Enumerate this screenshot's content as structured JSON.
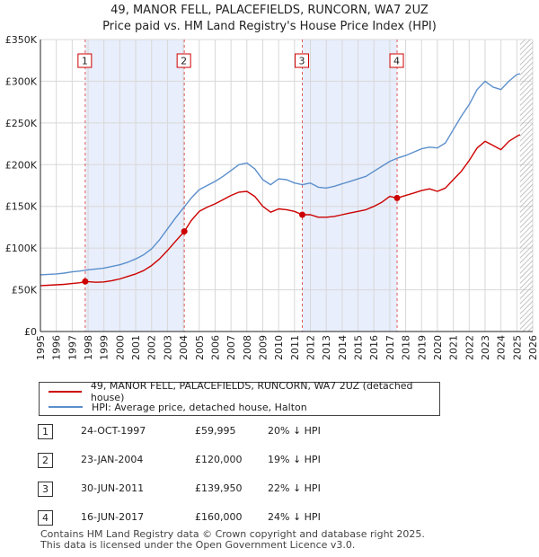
{
  "title_lines": [
    "49, MANOR FELL, PALACEFIELDS, RUNCORN, WA7 2UZ",
    "Price paid vs. HM Land Registry's House Price Index (HPI)"
  ],
  "chart_data": {
    "type": "line",
    "title": "49, MANOR FELL, PALACEFIELDS, RUNCORN, WA7 2UZ — Price paid vs. HM Land Registry's House Price Index (HPI)",
    "xlabel": "",
    "ylabel": "",
    "xlim": [
      1995,
      2026
    ],
    "ylim": [
      0,
      350000
    ],
    "x_ticks": [
      "1995",
      "1996",
      "1997",
      "1998",
      "1999",
      "2000",
      "2001",
      "2002",
      "2003",
      "2004",
      "2005",
      "2006",
      "2007",
      "2008",
      "2009",
      "2010",
      "2011",
      "2012",
      "2013",
      "2014",
      "2015",
      "2016",
      "2017",
      "2018",
      "2019",
      "2020",
      "2021",
      "2022",
      "2023",
      "2024",
      "2025",
      "2026"
    ],
    "y_ticks": [
      0,
      50000,
      100000,
      150000,
      200000,
      250000,
      300000,
      350000
    ],
    "y_tick_labels": [
      "£0",
      "£50K",
      "£100K",
      "£150K",
      "£200K",
      "£250K",
      "£300K",
      "£350K"
    ],
    "grid": true,
    "series": [
      {
        "name": "49, MANOR FELL, PALACEFIELDS, RUNCORN, WA7 2UZ (detached house)",
        "color": "#cc0000",
        "points": [
          [
            1995.0,
            55000
          ],
          [
            1995.5,
            55500
          ],
          [
            1996.0,
            56000
          ],
          [
            1996.5,
            56500
          ],
          [
            1997.0,
            57500
          ],
          [
            1997.5,
            58500
          ],
          [
            1997.82,
            59995
          ],
          [
            1998.5,
            59000
          ],
          [
            1999.0,
            59500
          ],
          [
            1999.5,
            61000
          ],
          [
            2000.0,
            63000
          ],
          [
            2000.5,
            66000
          ],
          [
            2001.0,
            69000
          ],
          [
            2001.5,
            73000
          ],
          [
            2002.0,
            79000
          ],
          [
            2002.5,
            87000
          ],
          [
            2003.0,
            97000
          ],
          [
            2003.5,
            108000
          ],
          [
            2004.06,
            120000
          ],
          [
            2004.5,
            133000
          ],
          [
            2005.0,
            144000
          ],
          [
            2005.5,
            149000
          ],
          [
            2006.0,
            153000
          ],
          [
            2006.5,
            158000
          ],
          [
            2007.0,
            163000
          ],
          [
            2007.5,
            167000
          ],
          [
            2008.0,
            168000
          ],
          [
            2008.5,
            162000
          ],
          [
            2009.0,
            150000
          ],
          [
            2009.5,
            143000
          ],
          [
            2010.0,
            147000
          ],
          [
            2010.5,
            146000
          ],
          [
            2011.0,
            144000
          ],
          [
            2011.49,
            139950
          ],
          [
            2012.0,
            140000
          ],
          [
            2012.5,
            137000
          ],
          [
            2013.0,
            137000
          ],
          [
            2013.5,
            138000
          ],
          [
            2014.0,
            140000
          ],
          [
            2014.5,
            142000
          ],
          [
            2015.0,
            144000
          ],
          [
            2015.5,
            146000
          ],
          [
            2016.0,
            150000
          ],
          [
            2016.5,
            155000
          ],
          [
            2017.0,
            162000
          ],
          [
            2017.46,
            160000
          ],
          [
            2018.0,
            163000
          ],
          [
            2018.5,
            166000
          ],
          [
            2019.0,
            169000
          ],
          [
            2019.5,
            171000
          ],
          [
            2020.0,
            168000
          ],
          [
            2020.5,
            172000
          ],
          [
            2021.0,
            182000
          ],
          [
            2021.5,
            192000
          ],
          [
            2022.0,
            205000
          ],
          [
            2022.5,
            220000
          ],
          [
            2023.0,
            228000
          ],
          [
            2023.5,
            223000
          ],
          [
            2024.0,
            218000
          ],
          [
            2024.5,
            228000
          ],
          [
            2025.0,
            234000
          ],
          [
            2025.2,
            236000
          ]
        ]
      },
      {
        "name": "HPI: Average price, detached house, Halton",
        "color": "#5b8fcc",
        "points": [
          [
            1995.0,
            68000
          ],
          [
            1995.5,
            68500
          ],
          [
            1996.0,
            69000
          ],
          [
            1996.5,
            70000
          ],
          [
            1997.0,
            71500
          ],
          [
            1997.5,
            72500
          ],
          [
            1998.0,
            74000
          ],
          [
            1998.5,
            75000
          ],
          [
            1999.0,
            76000
          ],
          [
            1999.5,
            78000
          ],
          [
            2000.0,
            80000
          ],
          [
            2000.5,
            83000
          ],
          [
            2001.0,
            87000
          ],
          [
            2001.5,
            92000
          ],
          [
            2002.0,
            99000
          ],
          [
            2002.5,
            110000
          ],
          [
            2003.0,
            123000
          ],
          [
            2003.5,
            136000
          ],
          [
            2004.0,
            148000
          ],
          [
            2004.5,
            160000
          ],
          [
            2005.0,
            170000
          ],
          [
            2005.5,
            175000
          ],
          [
            2006.0,
            180000
          ],
          [
            2006.5,
            186000
          ],
          [
            2007.0,
            193000
          ],
          [
            2007.5,
            200000
          ],
          [
            2008.0,
            202000
          ],
          [
            2008.5,
            195000
          ],
          [
            2009.0,
            182000
          ],
          [
            2009.5,
            176000
          ],
          [
            2010.0,
            183000
          ],
          [
            2010.5,
            182000
          ],
          [
            2011.0,
            178000
          ],
          [
            2011.5,
            176000
          ],
          [
            2012.0,
            178000
          ],
          [
            2012.5,
            173000
          ],
          [
            2013.0,
            172000
          ],
          [
            2013.5,
            174000
          ],
          [
            2014.0,
            177000
          ],
          [
            2014.5,
            180000
          ],
          [
            2015.0,
            183000
          ],
          [
            2015.5,
            186000
          ],
          [
            2016.0,
            192000
          ],
          [
            2016.5,
            198000
          ],
          [
            2017.0,
            204000
          ],
          [
            2017.5,
            208000
          ],
          [
            2018.0,
            211000
          ],
          [
            2018.5,
            215000
          ],
          [
            2019.0,
            219000
          ],
          [
            2019.5,
            221000
          ],
          [
            2020.0,
            220000
          ],
          [
            2020.5,
            226000
          ],
          [
            2021.0,
            242000
          ],
          [
            2021.5,
            258000
          ],
          [
            2022.0,
            272000
          ],
          [
            2022.5,
            290000
          ],
          [
            2023.0,
            300000
          ],
          [
            2023.5,
            293000
          ],
          [
            2024.0,
            290000
          ],
          [
            2024.5,
            300000
          ],
          [
            2025.0,
            308000
          ],
          [
            2025.2,
            309000
          ]
        ]
      }
    ],
    "shaded_ranges": [
      [
        1997.82,
        2004.06
      ],
      [
        2011.49,
        2017.46
      ]
    ],
    "hatched_from": 2025.2,
    "markers": [
      {
        "label": "1",
        "x": 1997.82,
        "y": 59995
      },
      {
        "label": "2",
        "x": 2004.06,
        "y": 120000
      },
      {
        "label": "3",
        "x": 2011.49,
        "y": 139950
      },
      {
        "label": "4",
        "x": 2017.46,
        "y": 160000
      }
    ]
  },
  "legend": {
    "property": "49, MANOR FELL, PALACEFIELDS, RUNCORN, WA7 2UZ (detached house)",
    "hpi": "HPI: Average price, detached house, Halton"
  },
  "transactions": [
    {
      "num": "1",
      "date": "24-OCT-1997",
      "price": "£59,995",
      "hpi": "20% ↓ HPI"
    },
    {
      "num": "2",
      "date": "23-JAN-2004",
      "price": "£120,000",
      "hpi": "19% ↓ HPI"
    },
    {
      "num": "3",
      "date": "30-JUN-2011",
      "price": "£139,950",
      "hpi": "22% ↓ HPI"
    },
    {
      "num": "4",
      "date": "16-JUN-2017",
      "price": "£160,000",
      "hpi": "24% ↓ HPI"
    }
  ],
  "footer": {
    "line1": "Contains HM Land Registry data © Crown copyright and database right 2025.",
    "line2": "This data is licensed under the Open Government Licence v3.0."
  }
}
